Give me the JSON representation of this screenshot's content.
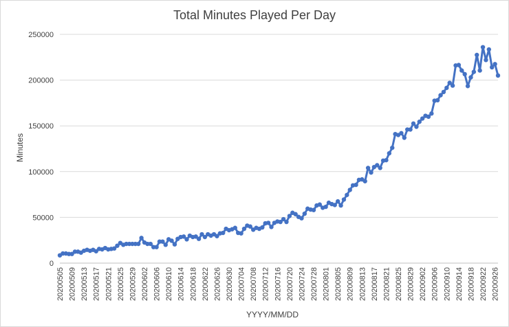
{
  "chart_data": {
    "type": "line",
    "title": "Total Minutes Played Per Day",
    "xlabel": "YYYY/MM/DD",
    "ylabel": "Minutes",
    "ylim": [
      0,
      250000
    ],
    "yticks": [
      0,
      50000,
      100000,
      150000,
      200000,
      250000
    ],
    "ytick_labels": [
      "0",
      "50000",
      "100000",
      "150000",
      "200000",
      "250000"
    ],
    "xtick_labels": [
      "20200505",
      "20200509",
      "20200513",
      "20200517",
      "20200521",
      "20200525",
      "20200529",
      "20200602",
      "20200606",
      "20200610",
      "20200614",
      "20200618",
      "20200622",
      "20200626",
      "20200630",
      "20200704",
      "20200708",
      "20200712",
      "20200716",
      "20200720",
      "20200724",
      "20200728",
      "20200801",
      "20200805",
      "20200809",
      "20200813",
      "20200817",
      "20200821",
      "20200825",
      "20200829",
      "20200902",
      "20200906",
      "20200910",
      "20200914",
      "20200918",
      "20200922",
      "20200926"
    ],
    "x_start_label": "20200505",
    "grid": true,
    "legend": "none",
    "line_color": "#4472C4",
    "series": [
      {
        "values": [
          8500,
          10500,
          10500,
          10000,
          10000,
          12500,
          12500,
          11500,
          13500,
          14500,
          13500,
          14500,
          13000,
          15500,
          15000,
          16500,
          15000,
          15500,
          16000,
          19000,
          22000,
          20000,
          21000,
          21000,
          21000,
          21000,
          21000,
          27500,
          22500,
          21000,
          21000,
          17500,
          17500,
          23500,
          23500,
          20000,
          26000,
          24500,
          20500,
          26500,
          28500,
          29000,
          26000,
          30000,
          28500,
          29000,
          26500,
          31500,
          28500,
          31500,
          30000,
          31500,
          29500,
          32500,
          33000,
          37500,
          36000,
          37000,
          38500,
          33000,
          32500,
          37500,
          41000,
          40000,
          36500,
          38500,
          37500,
          39000,
          43500,
          44000,
          39500,
          44000,
          45500,
          45000,
          48000,
          45000,
          51500,
          55000,
          53500,
          50500,
          49000,
          54000,
          59500,
          58500,
          58000,
          63000,
          64000,
          60500,
          61500,
          66000,
          64500,
          63500,
          67500,
          63000,
          69500,
          74500,
          80000,
          85000,
          85500,
          91000,
          91500,
          89500,
          104000,
          99000,
          105000,
          107000,
          104000,
          112000,
          112500,
          120000,
          126000,
          141000,
          140000,
          142000,
          137000,
          146000,
          146000,
          152500,
          149000,
          154500,
          158000,
          161000,
          160000,
          163500,
          177500,
          178000,
          183500,
          187000,
          191500,
          197000,
          194000,
          216000,
          216500,
          210500,
          206500,
          193500,
          203000,
          209000,
          227500,
          210500,
          236000,
          222000,
          233500,
          214000,
          217500,
          205000
        ]
      }
    ]
  }
}
